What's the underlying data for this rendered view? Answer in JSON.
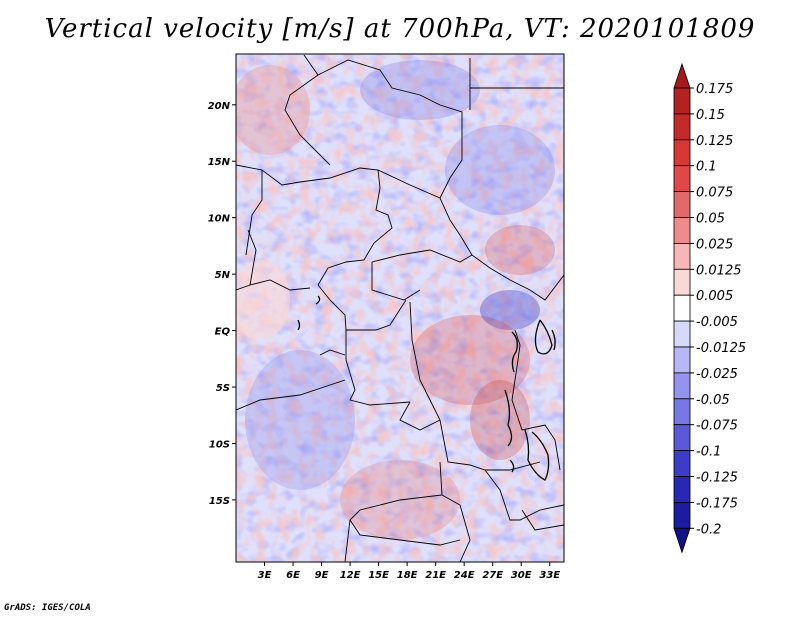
{
  "title": "Vertical velocity [m/s] at 700hPa, VT: 2020101809",
  "credit": "GrADS: IGES/COLA",
  "map": {
    "lon_range": [
      0,
      34.5
    ],
    "lat_range": [
      -20.5,
      24.5
    ],
    "lat_ticks": [
      {
        "value": 20,
        "label": "20N"
      },
      {
        "value": 15,
        "label": "15N"
      },
      {
        "value": 10,
        "label": "10N"
      },
      {
        "value": 5,
        "label": "5N"
      },
      {
        "value": 0,
        "label": "EQ"
      },
      {
        "value": -5,
        "label": "5S"
      },
      {
        "value": -10,
        "label": "10S"
      },
      {
        "value": -15,
        "label": "15S"
      }
    ],
    "lon_ticks": [
      {
        "value": 3,
        "label": "3E"
      },
      {
        "value": 6,
        "label": "6E"
      },
      {
        "value": 9,
        "label": "9E"
      },
      {
        "value": 12,
        "label": "12E"
      },
      {
        "value": 15,
        "label": "15E"
      },
      {
        "value": 18,
        "label": "18E"
      },
      {
        "value": 21,
        "label": "21E"
      },
      {
        "value": 24,
        "label": "24E"
      },
      {
        "value": 27,
        "label": "27E"
      },
      {
        "value": 30,
        "label": "30E"
      },
      {
        "value": 33,
        "label": "33E"
      }
    ],
    "colors": {
      "frame": "#000000",
      "border": "#000000",
      "lake": "#000000"
    }
  },
  "colorbar": {
    "levels": [
      "0.175",
      "0.15",
      "0.125",
      "0.1",
      "0.075",
      "0.05",
      "0.025",
      "0.0125",
      "0.005",
      "-0.005",
      "-0.0125",
      "-0.025",
      "-0.05",
      "-0.075",
      "-0.1",
      "-0.125",
      "-0.175",
      "-0.2"
    ],
    "colors": [
      "#a51a1a",
      "#b42121",
      "#c42a2a",
      "#d63737",
      "#e04848",
      "#e06a6a",
      "#ee8c8c",
      "#f6b7b7",
      "#fbd8d8",
      "#ffffff",
      "#d8d8fb",
      "#b7b7f6",
      "#9494ee",
      "#7777e6",
      "#5a5ad8",
      "#3c3cc8",
      "#2828b4",
      "#1c1ca0",
      "#11118a"
    ]
  }
}
